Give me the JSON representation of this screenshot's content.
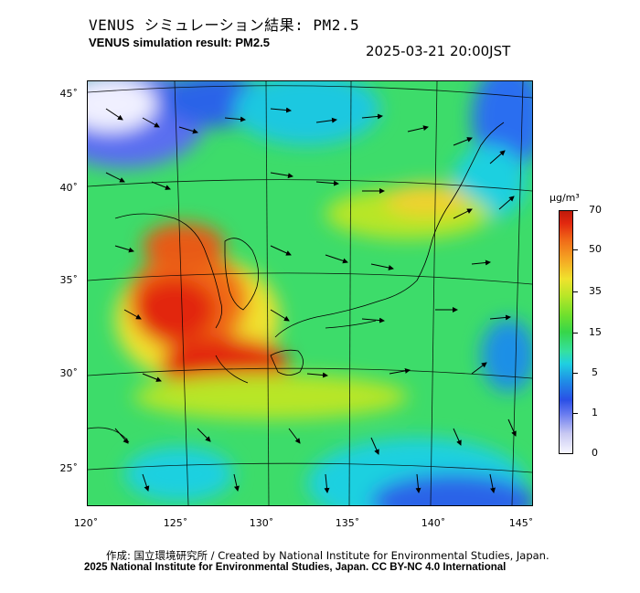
{
  "title_jp": "VENUS シミュレーション結果: PM2.5",
  "title_en": "VENUS simulation result: PM2.5",
  "datetime": "2025-03-21 20:00JST",
  "map": {
    "lat_labels": [
      "45˚",
      "40˚",
      "35˚",
      "30˚",
      "25˚"
    ],
    "lon_labels": [
      "120˚",
      "125˚",
      "130˚",
      "135˚",
      "140˚",
      "145˚"
    ],
    "ocean_color": "#36d64a",
    "land_outline_color": "#000000"
  },
  "colorbar": {
    "unit": "µg/m³",
    "ticks": [
      "70",
      "50",
      "35",
      "15",
      "5",
      "1",
      "0"
    ]
  },
  "credit_line1": "作成: 国立環境研究所 / Created by National Institute for Environmental Studies, Japan.",
  "credit_line2": "2025 National Institute for Environmental Studies, Japan. CC BY-NC 4.0 International"
}
